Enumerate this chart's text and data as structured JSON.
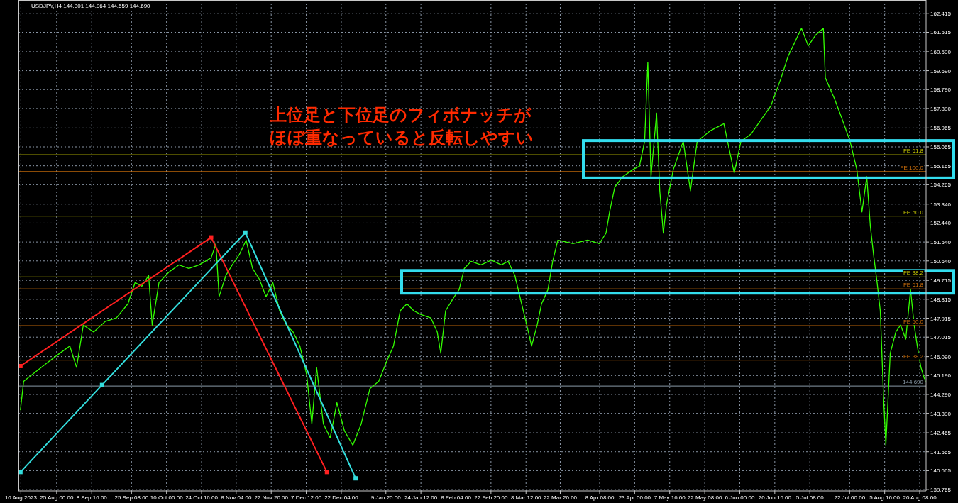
{
  "chart_data": {
    "type": "line",
    "title": "USDJPY,H4  144.801 144.964 144.559 144.690",
    "annotations": [
      "上位足と下位足のフィボナッチがほぼ重なっていると反転しやすい"
    ],
    "xlim": [
      "2023-08-09T00:00",
      "2024-08-23T00:00"
    ],
    "xticks": [
      {
        "value": "2023-08-10T00:00",
        "label": "10 Aug 2023"
      },
      {
        "value": "2023-08-25T00:00",
        "label": "25 Aug 00:00"
      },
      {
        "value": "2023-09-08T16:00",
        "label": "8 Sep 16:00"
      },
      {
        "value": "2023-09-25T08:00",
        "label": "25 Sep 08:00"
      },
      {
        "value": "2023-10-10T00:00",
        "label": "10 Oct 00:00"
      },
      {
        "value": "2023-10-24T16:00",
        "label": "24 Oct 16:00"
      },
      {
        "value": "2023-11-08T04:00",
        "label": "8 Nov 04:00"
      },
      {
        "value": "2023-11-22T20:00",
        "label": "22 Nov 20:00"
      },
      {
        "value": "2023-12-07T12:00",
        "label": "7 Dec 12:00"
      },
      {
        "value": "2023-12-22T04:00",
        "label": "22 Dec 04:00"
      },
      {
        "value": "2024-01-09T20:00",
        "label": "9 Jan 20:00"
      },
      {
        "value": "2024-01-24T12:00",
        "label": "24 Jan 12:00"
      },
      {
        "value": "2024-02-08T04:00",
        "label": "8 Feb 04:00"
      },
      {
        "value": "2024-02-22T20:00",
        "label": "22 Feb 20:00"
      },
      {
        "value": "2024-03-08T12:00",
        "label": "8 Mar 12:00"
      },
      {
        "value": "2024-03-22T20:00",
        "label": "22 Mar 20:00"
      },
      {
        "value": "2024-04-08T08:00",
        "label": "8 Apr 08:00"
      },
      {
        "value": "2024-04-23T00:00",
        "label": "23 Apr 00:00"
      },
      {
        "value": "2024-05-07T16:00",
        "label": "7 May 16:00"
      },
      {
        "value": "2024-05-22T08:00",
        "label": "22 May 08:00"
      },
      {
        "value": "2024-06-06T00:00",
        "label": "6 Jun 00:00"
      },
      {
        "value": "2024-06-20T16:00",
        "label": "20 Jun 16:00"
      },
      {
        "value": "2024-07-05T08:00",
        "label": "5 Jul 08:00"
      },
      {
        "value": "2024-07-22T00:00",
        "label": "22 Jul 00:00"
      },
      {
        "value": "2024-08-05T16:00",
        "label": "5 Aug 16:00"
      },
      {
        "value": "2024-08-20T08:00",
        "label": "20 Aug 08:00"
      }
    ],
    "ylim": [
      139.7,
      163.05
    ],
    "yticks": [
      139.765,
      140.665,
      141.565,
      142.465,
      {
        "value": 143.39,
        "label": "143.390"
      },
      {
        "value": 144.29,
        "label": "144.290"
      },
      {
        "value": 145.19,
        "label": "145.190"
      },
      {
        "value": 146.09,
        "label": "146.090"
      },
      147.015,
      147.915,
      148.815,
      149.715,
      {
        "value": 150.64,
        "label": "150.640"
      },
      {
        "value": 151.54,
        "label": "151.540"
      },
      {
        "value": 152.44,
        "label": "152.440"
      },
      {
        "value": 153.34,
        "label": "153.340"
      },
      154.265,
      155.165,
      156.065,
      156.965,
      {
        "value": 157.89,
        "label": "157.890"
      },
      {
        "value": 158.79,
        "label": "158.790"
      },
      {
        "value": 159.69,
        "label": "159.690"
      },
      {
        "value": 160.59,
        "label": "160.590"
      },
      161.515,
      162.415
    ],
    "grid": true,
    "series": [
      {
        "color": "#33ff00",
        "x": [
          "2023-08-09T20:00",
          "2023-08-11T04:00",
          "2023-08-14T20:00",
          "2023-08-20T12:00",
          "2023-08-26T08:00",
          "2023-08-30T12:00",
          "2023-09-02T08:00",
          "2023-09-05T04:00",
          "2023-09-09T12:00",
          "2023-09-14T08:00",
          "2023-09-19T00:00",
          "2023-09-23T20:00",
          "2023-09-26T20:00",
          "2023-09-29T16:00",
          "2023-10-02T12:00",
          "2023-10-04T00:00",
          "2023-10-06T20:00",
          "2023-10-11T00:00",
          "2023-10-15T04:00",
          "2023-10-19T08:00",
          "2023-10-23T16:00",
          "2023-10-28T16:00",
          "2023-10-30T16:00",
          "2023-11-01T00:00",
          "2023-11-03T20:00",
          "2023-11-06T12:00",
          "2023-11-09T12:00",
          "2023-11-12T08:00",
          "2023-11-15T00:00",
          "2023-11-17T20:00",
          "2023-11-20T16:00",
          "2023-11-23T12:00",
          "2023-11-26T08:00",
          "2023-11-29T04:00",
          "2023-12-02T00:00",
          "2023-12-04T20:00",
          "2023-12-07T16:00",
          "2023-12-09T20:00",
          "2023-12-11T20:00",
          "2023-12-14T16:00",
          "2023-12-17T12:00",
          "2023-12-20T08:00",
          "2023-12-23T12:00",
          "2023-12-27T00:00",
          "2023-12-30T12:00",
          "2024-01-03T04:00",
          "2024-01-06T20:00",
          "2024-01-10T08:00",
          "2024-01-13T00:00",
          "2024-01-15T20:00",
          "2024-01-18T16:00",
          "2024-01-21T12:00",
          "2024-01-24T08:00",
          "2024-01-28T16:00",
          "2024-01-31T08:00",
          "2024-02-01T20:00",
          "2024-02-03T20:00",
          "2024-02-07T12:00",
          "2024-02-09T12:00",
          "2024-02-11T16:00",
          "2024-02-14T12:00",
          "2024-02-18T16:00",
          "2024-02-23T00:00",
          "2024-02-27T04:00",
          "2024-03-01T00:00",
          "2024-03-03T20:00",
          "2024-03-06T16:00",
          "2024-03-09T12:00",
          "2024-03-10T20:00",
          "2024-03-13T04:00",
          "2024-03-15T00:00",
          "2024-03-17T16:00",
          "2024-03-19T16:00",
          "2024-03-21T20:00",
          "2024-03-28T04:00",
          "2024-04-03T08:00",
          "2024-04-08T04:00",
          "2024-04-11T00:00",
          "2024-04-12T12:00",
          "2024-04-14T16:00",
          "2024-04-18T00:00",
          "2024-04-22T08:00",
          "2024-04-25T00:00",
          "2024-04-27T04:00",
          "2024-04-28T12:00",
          "2024-04-29T20:00",
          "2024-05-02T04:00",
          "2024-05-03T12:00",
          "2024-05-05T00:00",
          "2024-05-06T08:00",
          "2024-05-09T04:00",
          "2024-05-13T08:00",
          "2024-05-16T08:00",
          "2024-05-19T04:00",
          "2024-05-24T16:00",
          "2024-05-30T08:00",
          "2024-06-03T16:00",
          "2024-06-06T12:00",
          "2024-06-10T16:00",
          "2024-06-14T20:00",
          "2024-06-19T00:00",
          "2024-06-23T08:00",
          "2024-06-26T04:00",
          "2024-06-29T00:00",
          "2024-07-01T20:00",
          "2024-07-04T16:00",
          "2024-07-07T16:00",
          "2024-07-11T00:00",
          "2024-07-11T20:00",
          "2024-07-15T16:00",
          "2024-07-19T00:00",
          "2024-07-22T04:00",
          "2024-07-25T00:00",
          "2024-07-27T04:00",
          "2024-07-29T04:00",
          "2024-07-30T16:00",
          "2024-08-01T00:00",
          "2024-08-02T12:00",
          "2024-08-03T20:00",
          "2024-08-05T04:00",
          "2024-08-06T04:00",
          "2024-08-08T00:00",
          "2024-08-10T08:00",
          "2024-08-12T08:00",
          "2024-08-14T12:00",
          "2024-08-16T12:00",
          "2024-08-18T00:00",
          "2024-08-19T08:00",
          "2024-08-20T20:00",
          "2024-08-22T16:00"
        ],
        "values": [
          143.56,
          144.91,
          145.24,
          145.75,
          146.25,
          146.59,
          145.58,
          147.59,
          147.26,
          147.76,
          147.93,
          148.6,
          149.61,
          149.44,
          149.95,
          147.59,
          149.61,
          150.11,
          150.45,
          150.28,
          150.45,
          150.79,
          151.46,
          148.94,
          149.95,
          150.45,
          150.95,
          151.63,
          150.28,
          149.78,
          148.94,
          149.61,
          148.27,
          147.59,
          147.26,
          146.59,
          145.24,
          142.89,
          145.58,
          142.89,
          142.22,
          143.9,
          142.55,
          141.88,
          142.89,
          144.57,
          144.91,
          145.91,
          146.59,
          148.27,
          148.6,
          148.27,
          148.1,
          147.93,
          147.26,
          146.25,
          148.27,
          148.94,
          149.27,
          150.28,
          150.62,
          150.45,
          150.68,
          150.45,
          150.62,
          149.95,
          148.6,
          147.26,
          146.59,
          147.59,
          148.6,
          149.27,
          150.62,
          151.63,
          151.46,
          151.63,
          151.46,
          151.96,
          152.97,
          154.15,
          154.65,
          154.99,
          155.15,
          156.33,
          160.09,
          154.65,
          157.67,
          153.98,
          151.96,
          153.31,
          154.99,
          156.33,
          153.98,
          156.33,
          156.83,
          157.17,
          154.82,
          156.33,
          156.67,
          157.34,
          158.01,
          159.35,
          160.36,
          161.03,
          161.71,
          160.87,
          161.37,
          161.71,
          159.35,
          158.35,
          157.34,
          156.33,
          154.99,
          152.97,
          154.65,
          152.3,
          150.95,
          149.61,
          148.27,
          144.23,
          141.88,
          146.25,
          147.26,
          147.59,
          146.92,
          149.27,
          147.59,
          146.59,
          145.58,
          144.91
        ]
      },
      {
        "color": "#ff2020",
        "marker": "square",
        "x": [
          "2023-08-09T20:00",
          "2023-10-28T16:00",
          "2023-12-16T04:00"
        ],
        "values": [
          145.64,
          151.76,
          140.6
        ]
      },
      {
        "color": "#33dddd",
        "marker": "square",
        "x": [
          "2023-08-09T20:00",
          "2023-09-13T00:00",
          "2023-11-12T00:00",
          "2023-12-28T04:00"
        ],
        "values": [
          140.6,
          144.74,
          151.99,
          140.3
        ]
      }
    ],
    "ref_lines": [
      {
        "axis": "y",
        "value": 155.69,
        "label": "FE 61.8",
        "color": "#c8c800"
      },
      {
        "axis": "y",
        "value": 154.89,
        "label": "FE 100.0",
        "color": "#d0700a"
      },
      {
        "axis": "y",
        "value": 152.77,
        "label": "FE 50.0",
        "color": "#c8c800"
      },
      {
        "axis": "y",
        "value": 149.88,
        "label": "FE 38.2",
        "color": "#c8c800"
      },
      {
        "axis": "y",
        "value": 149.31,
        "label": "FE 61.8",
        "color": "#d0700a"
      },
      {
        "axis": "y",
        "value": 147.56,
        "label": "FE 50.0",
        "color": "#d0700a"
      },
      {
        "axis": "y",
        "value": 145.92,
        "label": "FE 38.2",
        "color": "#d0700a"
      },
      {
        "axis": "y",
        "value": 144.69,
        "label": "144.690",
        "color": "#8a9aa8"
      }
    ]
  }
}
